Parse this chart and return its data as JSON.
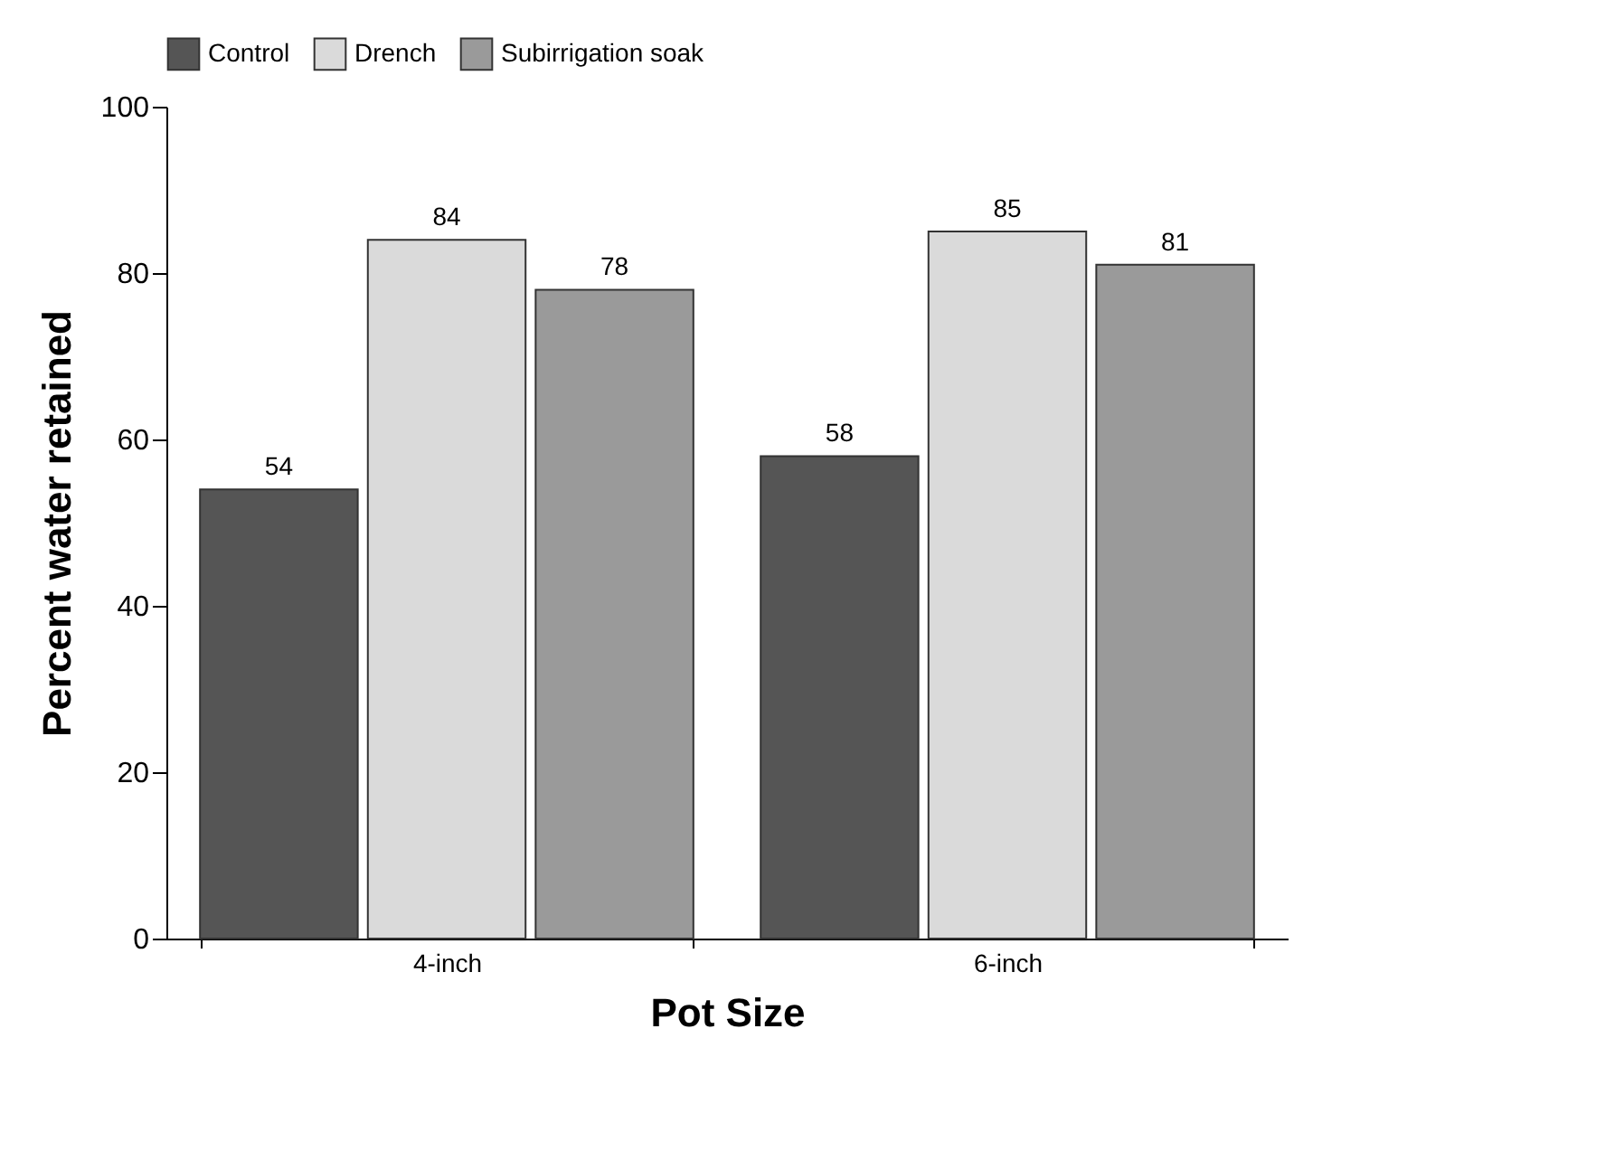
{
  "chart_data": {
    "type": "bar",
    "xlabel": "Pot Size",
    "ylabel": "Percent water retained",
    "categories": [
      "4-inch",
      "6-inch"
    ],
    "series": [
      {
        "name": "Control",
        "color": "#555555",
        "values": [
          54,
          58
        ]
      },
      {
        "name": "Drench",
        "color": "#dadada",
        "values": [
          84,
          85
        ]
      },
      {
        "name": "Subirrigation soak",
        "color": "#9a9a9a",
        "values": [
          78,
          81
        ]
      }
    ],
    "ylim": [
      0,
      100
    ],
    "yticks": [
      0,
      20,
      40,
      60,
      80,
      100
    ],
    "data_labels": true,
    "legend": "top",
    "grid": false
  }
}
